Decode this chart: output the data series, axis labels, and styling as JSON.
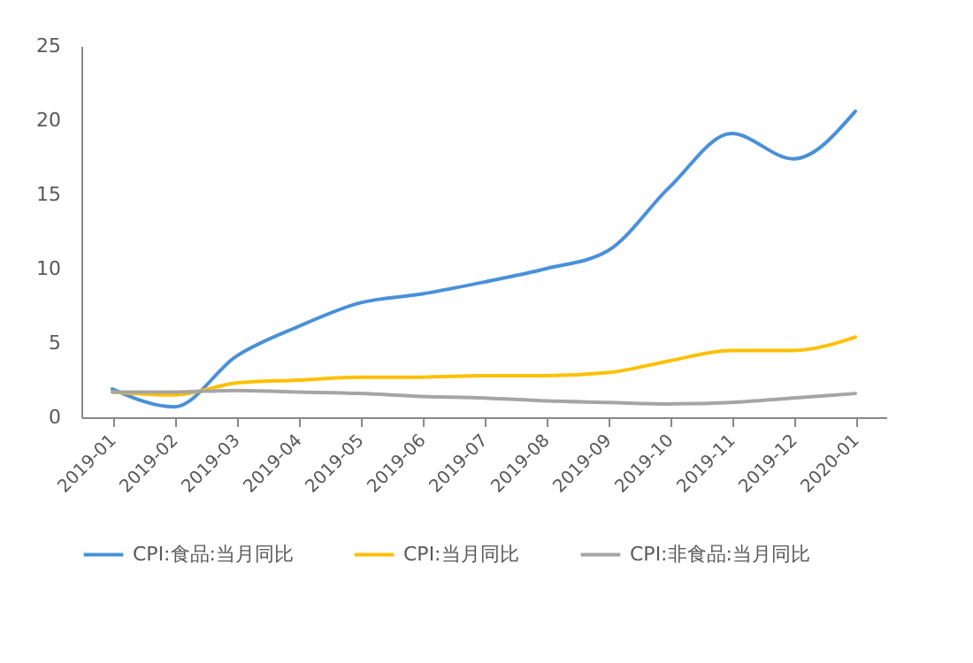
{
  "chart_data": {
    "type": "line",
    "categories": [
      "2019-01",
      "2019-02",
      "2019-03",
      "2019-04",
      "2019-05",
      "2019-06",
      "2019-07",
      "2019-08",
      "2019-09",
      "2019-10",
      "2019-11",
      "2019-12",
      "2020-01"
    ],
    "series": [
      {
        "name": "CPI:食品:当月同比",
        "color": "#4a90d9",
        "values": [
          1.9,
          0.7,
          4.1,
          6.1,
          7.7,
          8.3,
          9.1,
          10.0,
          11.2,
          15.5,
          19.1,
          17.4,
          20.6
        ]
      },
      {
        "name": "CPI:当月同比",
        "color": "#ffc000",
        "values": [
          1.7,
          1.5,
          2.3,
          2.5,
          2.7,
          2.7,
          2.8,
          2.8,
          3.0,
          3.8,
          4.5,
          4.5,
          5.4
        ]
      },
      {
        "name": "CPI:非食品:当月同比",
        "color": "#a5a5a5",
        "values": [
          1.7,
          1.7,
          1.8,
          1.7,
          1.6,
          1.4,
          1.3,
          1.1,
          1.0,
          0.9,
          1.0,
          1.3,
          1.6
        ]
      }
    ],
    "ylim": [
      0,
      25
    ],
    "yticks": [
      0,
      5,
      10,
      15,
      20,
      25
    ],
    "grid": false,
    "legend": "bottom",
    "marker": "none",
    "line_style": "solid"
  }
}
